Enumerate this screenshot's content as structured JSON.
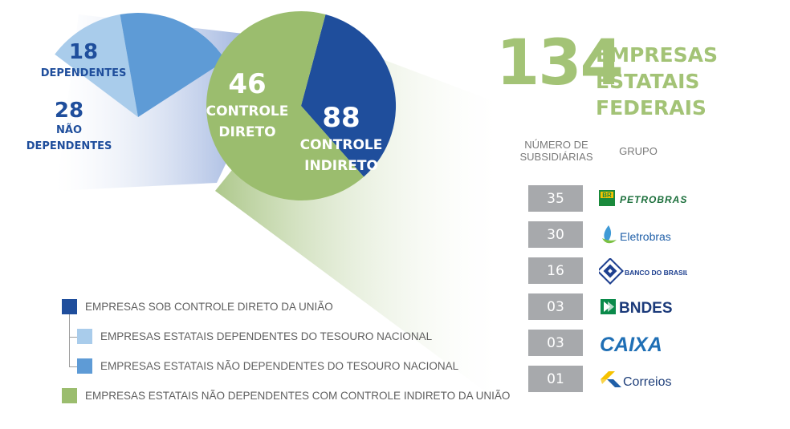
{
  "chart_data": {
    "type": "pie",
    "total": {
      "value": "134",
      "label_line1": "EMPRESAS",
      "label_line2": "ESTATAIS FEDERAIS"
    },
    "main_pie": [
      {
        "value": 46,
        "value_text": "46",
        "label_line1": "CONTROLE",
        "label_line2": "DIRETO",
        "color": "#1f4e9c"
      },
      {
        "value": 88,
        "value_text": "88",
        "label_line1": "CONTROLE",
        "label_line2": "INDIRETO",
        "color": "#9bbd6e"
      }
    ],
    "direct_breakdown": [
      {
        "value": 18,
        "value_text": "18",
        "label_line1": "DEPENDENTES",
        "label_line2": "",
        "color": "#a9cceb"
      },
      {
        "value": 28,
        "value_text": "28",
        "label_line1": "NÃO",
        "label_line2": "DEPENDENTES",
        "color": "#5e9bd6"
      }
    ],
    "subsidiaries_table": {
      "header_count": [
        "NÚMERO DE",
        "SUBSIDIÁRIAS"
      ],
      "header_group": "GRUPO",
      "rows": [
        {
          "count": "35",
          "group": "PETROBRAS",
          "logo_icon": "petrobras-logo-icon"
        },
        {
          "count": "30",
          "group": "Eletrobras",
          "logo_icon": "eletrobras-logo-icon"
        },
        {
          "count": "16",
          "group": "BANCO DO BRASIL",
          "logo_icon": "banco-do-brasil-logo-icon"
        },
        {
          "count": "03",
          "group": "BNDES",
          "logo_icon": "bndes-logo-icon"
        },
        {
          "count": "03",
          "group": "CAIXA",
          "logo_icon": "caixa-logo-icon"
        },
        {
          "count": "01",
          "group": "Correios",
          "logo_icon": "correios-logo-icon"
        }
      ]
    },
    "legend": [
      {
        "label": "EMPRESAS SOB CONTROLE DIRETO DA UNIÃO",
        "color": "#1f4e9c"
      },
      {
        "label": "EMPRESAS ESTATAIS DEPENDENTES DO TESOURO NACIONAL",
        "color": "#a9cceb"
      },
      {
        "label": "EMPRESAS ESTATAIS NÃO DEPENDENTES DO TESOURO NACIONAL",
        "color": "#5e9bd6"
      },
      {
        "label": "EMPRESAS ESTATAIS NÃO DEPENDENTES COM CONTROLE INDIRETO DA UNIÃO",
        "color": "#9bbd6e"
      }
    ]
  }
}
